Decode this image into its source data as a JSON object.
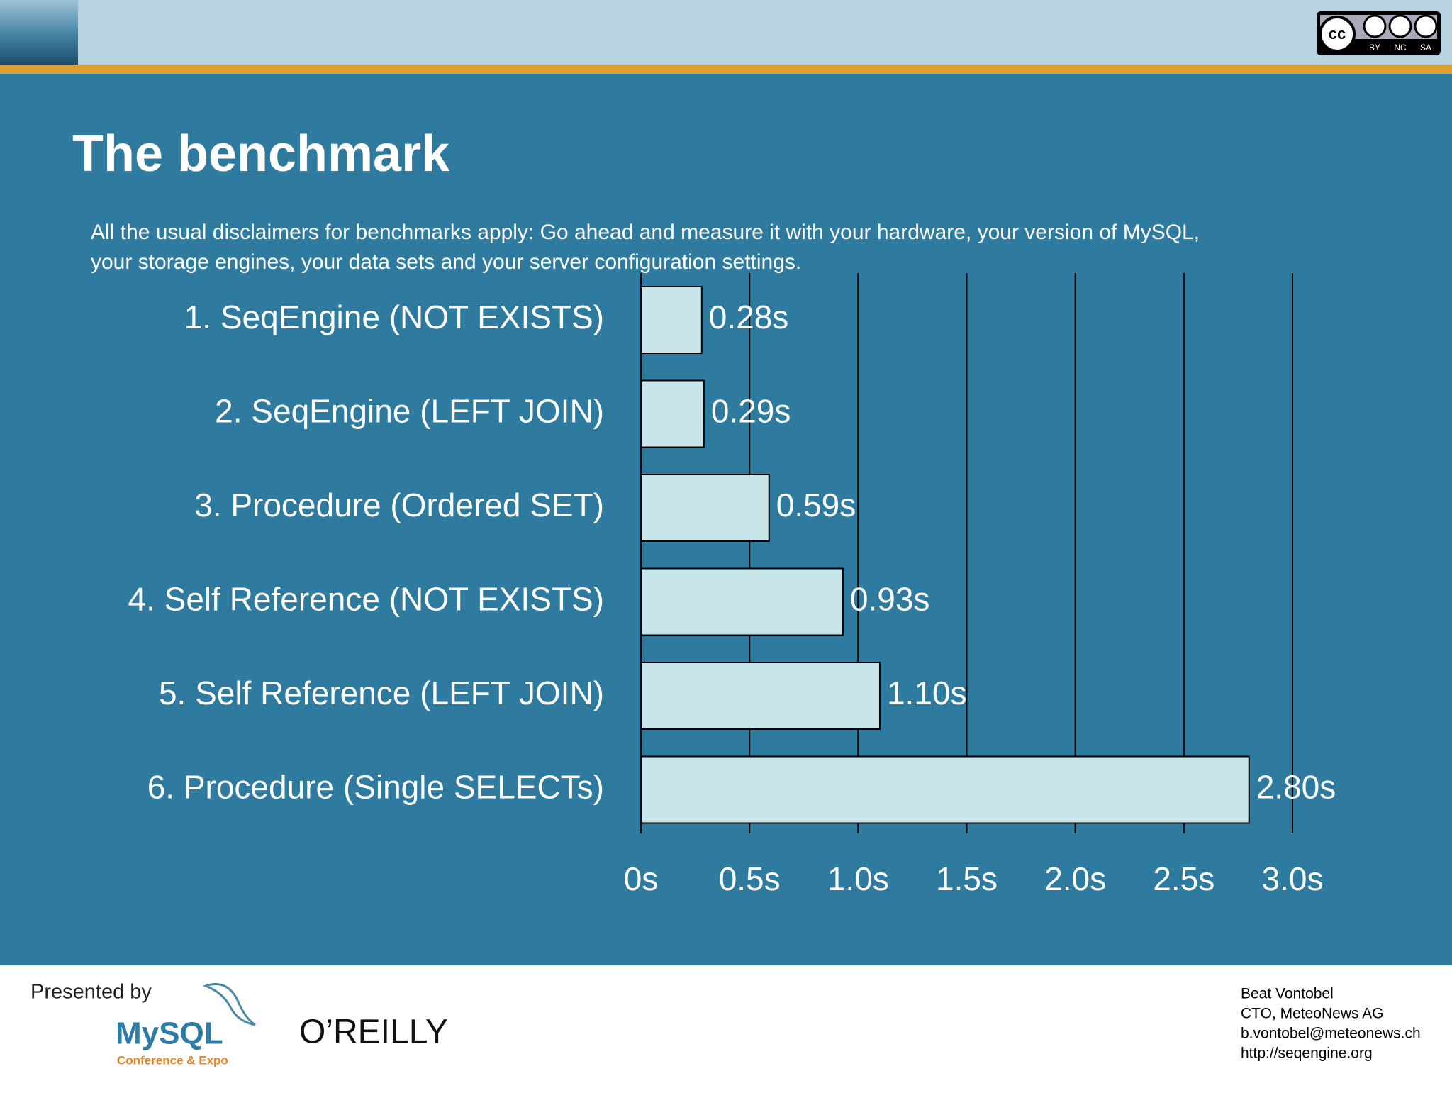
{
  "chart_data": {
    "type": "bar",
    "orientation": "horizontal",
    "title": "The benchmark",
    "subtitle": [
      "All the usual disclaimers for benchmarks apply: Go ahead and measure it with your hardware, your version of MySQL,",
      "your storage engines, your data sets and your server configuration settings."
    ],
    "categories": [
      "1. SeqEngine (NOT EXISTS)",
      "2. SeqEngine (LEFT JOIN)",
      "3. Procedure (Ordered SET)",
      "4. Self Reference (NOT EXISTS)",
      "5. Self Reference (LEFT JOIN)",
      "6. Procedure (Single SELECTs)"
    ],
    "values": [
      0.28,
      0.29,
      0.59,
      0.93,
      1.1,
      2.8
    ],
    "value_labels": [
      "0.28s",
      "0.29s",
      "0.59s",
      "0.93s",
      "1.10s",
      "2.80s"
    ],
    "color": "#c8e6ea",
    "xlim": [
      0,
      3.0
    ],
    "xticks": [
      {
        "value": 0,
        "label": "0s"
      },
      {
        "value": 0.5,
        "label": "0.5s"
      },
      {
        "value": 1.0,
        "label": "1.0s"
      },
      {
        "value": 1.5,
        "label": "1.5s"
      },
      {
        "value": 2.0,
        "label": "2.0s"
      },
      {
        "value": 2.5,
        "label": "2.5s"
      },
      {
        "value": 3.0,
        "label": "3.0s"
      }
    ],
    "grid": true
  },
  "header": {
    "license": [
      "BY",
      "NC",
      "SA"
    ]
  },
  "footer": {
    "presented_by": "Presented by",
    "mysql": "MySQL",
    "mysql_sub": "Conference & Expo",
    "publisher": "O’REILLY",
    "author": [
      "Beat Vontobel",
      "CTO, MeteoNews AG",
      "b.vontobel@meteonews.ch",
      "http://seqengine.org"
    ]
  }
}
